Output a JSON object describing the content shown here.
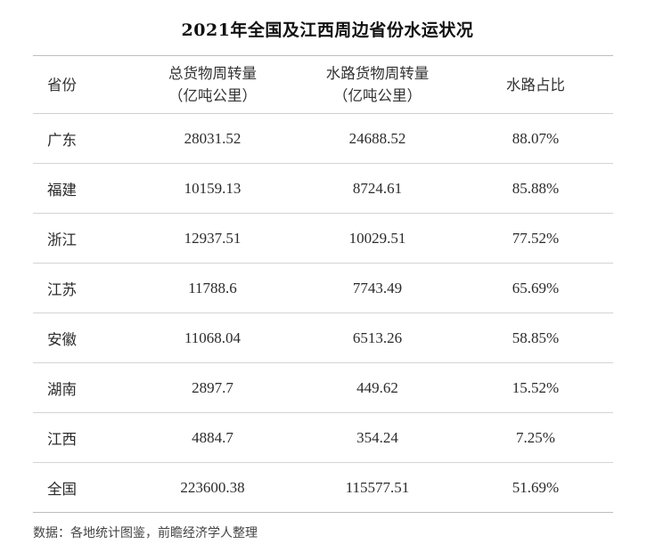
{
  "title": "2021年全国及江西周边省份水运状况",
  "table": {
    "headers": [
      {
        "line1": "省份",
        "line2": ""
      },
      {
        "line1": "总货物周转量",
        "line2": "（亿吨公里）"
      },
      {
        "line1": "水路货物周转量",
        "line2": "（亿吨公里）"
      },
      {
        "line1": "水路占比",
        "line2": ""
      }
    ],
    "rows": [
      [
        "广东",
        "28031.52",
        "24688.52",
        "88.07%"
      ],
      [
        "福建",
        "10159.13",
        "8724.61",
        "85.88%"
      ],
      [
        "浙江",
        "12937.51",
        "10029.51",
        "77.52%"
      ],
      [
        "江苏",
        "11788.6",
        "7743.49",
        "65.69%"
      ],
      [
        "安徽",
        "11068.04",
        "6513.26",
        "58.85%"
      ],
      [
        "湖南",
        "2897.7",
        "449.62",
        "15.52%"
      ],
      [
        "江西",
        "4884.7",
        "354.24",
        "7.25%"
      ],
      [
        "全国",
        "223600.38",
        "115577.51",
        "51.69%"
      ]
    ]
  },
  "source": "数据：各地统计图鉴，前瞻经济学人整理"
}
